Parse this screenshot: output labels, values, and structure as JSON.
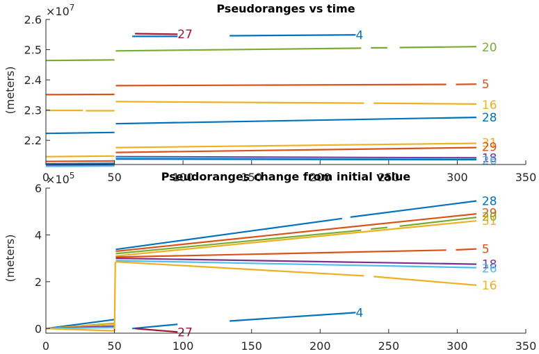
{
  "chart_data": [
    {
      "type": "line",
      "title": "Pseudoranges vs time",
      "ylabel": "(meters)",
      "xlabel": "",
      "xlim": [
        0,
        350
      ],
      "ylim": [
        21200000,
        26000000
      ],
      "y_exponent_label": "×10",
      "y_exponent_power": "7",
      "xticks": [
        "0",
        "50",
        "100",
        "150",
        "200",
        "250",
        "300",
        "350"
      ],
      "xtick_values": [
        0,
        50,
        100,
        150,
        200,
        250,
        300,
        350
      ],
      "yticks": [
        "2.2",
        "2.3",
        "2.4",
        "2.5",
        "2.6"
      ],
      "ytick_values": [
        22000000,
        23000000,
        24000000,
        25000000,
        26000000
      ],
      "series": [
        {
          "name": "27",
          "color": "#A2142F",
          "label_x": 96,
          "label_y": 25520000,
          "segments": [
            [
              [
                65,
                25530000
              ],
              [
                96,
                25510000
              ]
            ]
          ]
        },
        {
          "name": "4",
          "color": "#0072BD",
          "label_x": 226,
          "label_y": 25480000,
          "segments": [
            [
              [
                63,
                25440000
              ],
              [
                96,
                25440000
              ]
            ],
            [
              [
                134,
                25460000
              ],
              [
                226,
                25490000
              ]
            ]
          ]
        },
        {
          "name": "20",
          "color": "#77AC30",
          "label_x": 318,
          "label_y": 25080000,
          "segments": [
            [
              [
                0,
                24640000
              ],
              [
                50,
                24660000
              ]
            ],
            [
              [
                51,
                24960000
              ],
              [
                230,
                25050000
              ]
            ],
            [
              [
                237,
                25060000
              ],
              [
                249,
                25060000
              ]
            ],
            [
              [
                258,
                25070000
              ],
              [
                314,
                25100000
              ]
            ]
          ]
        },
        {
          "name": "5",
          "color": "#D95319",
          "label_x": 318,
          "label_y": 23860000,
          "segments": [
            [
              [
                0,
                23510000
              ],
              [
                50,
                23520000
              ]
            ],
            [
              [
                51,
                23810000
              ],
              [
                292,
                23850000
              ]
            ],
            [
              [
                299,
                23850000
              ],
              [
                314,
                23860000
              ]
            ]
          ]
        },
        {
          "name": "16",
          "color": "#EDB120",
          "label_x": 318,
          "label_y": 23180000,
          "segments": [
            [
              [
                0,
                22990000
              ],
              [
                27,
                22990000
              ]
            ],
            [
              [
                29,
                22980000
              ],
              [
                50,
                22980000
              ]
            ],
            [
              [
                51,
                23280000
              ],
              [
                232,
                23230000
              ]
            ],
            [
              [
                239,
                23230000
              ],
              [
                314,
                23200000
              ]
            ]
          ]
        },
        {
          "name": "28",
          "color": "#0072BD",
          "label_x": 318,
          "label_y": 22760000,
          "segments": [
            [
              [
                0,
                22230000
              ],
              [
                50,
                22260000
              ]
            ],
            [
              [
                51,
                22550000
              ],
              [
                314,
                22760000
              ]
            ]
          ]
        },
        {
          "name": "31",
          "color": "#EDB120",
          "label_x": 318,
          "label_y": 21920000,
          "segments": [
            [
              [
                0,
                21460000
              ],
              [
                50,
                21480000
              ]
            ],
            [
              [
                51,
                21760000
              ],
              [
                314,
                21900000
              ]
            ]
          ]
        },
        {
          "name": "29",
          "color": "#D95319",
          "label_x": 318,
          "label_y": 21780000,
          "segments": [
            [
              [
                0,
                21300000
              ],
              [
                50,
                21320000
              ]
            ],
            [
              [
                51,
                21600000
              ],
              [
                314,
                21760000
              ]
            ]
          ]
        },
        {
          "name": "18",
          "color": "#7E2F8E",
          "label_x": 318,
          "label_y": 21420000,
          "segments": [
            [
              [
                0,
                21160000
              ],
              [
                50,
                21180000
              ]
            ],
            [
              [
                51,
                21460000
              ],
              [
                314,
                21420000
              ]
            ]
          ]
        },
        {
          "name": "26",
          "color": "#4DBEEE",
          "label_x": 318,
          "label_y": 21340000,
          "segments": [
            [
              [
                0,
                21140000
              ],
              [
                50,
                21150000
              ]
            ],
            [
              [
                51,
                21430000
              ],
              [
                314,
                21380000
              ]
            ]
          ]
        },
        {
          "name": "",
          "color": "#0072BD",
          "segments": [
            [
              [
                0,
                21220000
              ],
              [
                50,
                21240000
              ]
            ],
            [
              [
                51,
                21380000
              ],
              [
                314,
                21360000
              ]
            ]
          ]
        }
      ]
    },
    {
      "type": "line",
      "title": "Pseudoranges change from initial value",
      "ylabel": "(meters)",
      "xlabel": "",
      "xlim": [
        0,
        350
      ],
      "ylim": [
        -20000,
        600000
      ],
      "y_exponent_label": "×10",
      "y_exponent_power": "5",
      "xticks": [
        "0",
        "50",
        "100",
        "150",
        "200",
        "250",
        "300",
        "350"
      ],
      "xtick_values": [
        0,
        50,
        100,
        150,
        200,
        250,
        300,
        350
      ],
      "yticks": [
        "0",
        "2",
        "4",
        "6"
      ],
      "ytick_values": [
        0,
        200000,
        400000,
        600000
      ],
      "series": [
        {
          "name": "28",
          "color": "#0072BD",
          "label_x": 318,
          "label_y": 545000,
          "segments": [
            [
              [
                0,
                0
              ],
              [
                50,
                38000
              ]
            ],
            [
              [
                51,
                338000
              ],
              [
                216,
                470000
              ]
            ],
            [
              [
                222,
                476000
              ],
              [
                314,
                545000
              ]
            ]
          ]
        },
        {
          "name": "29",
          "color": "#D95319",
          "label_x": 318,
          "label_y": 495000,
          "segments": [
            [
              [
                0,
                0
              ],
              [
                50,
                20000
              ]
            ],
            [
              [
                51,
                330000
              ],
              [
                314,
                490000
              ]
            ]
          ]
        },
        {
          "name": "20",
          "color": "#77AC30",
          "label_x": 318,
          "label_y": 478000,
          "segments": [
            [
              [
                0,
                0
              ],
              [
                50,
                22000
              ]
            ],
            [
              [
                51,
                320000
              ],
              [
                230,
                420000
              ]
            ],
            [
              [
                237,
                425000
              ],
              [
                249,
                432000
              ]
            ],
            [
              [
                258,
                437000
              ],
              [
                314,
                475000
              ]
            ]
          ]
        },
        {
          "name": "31",
          "color": "#EDB120",
          "label_x": 318,
          "label_y": 460000,
          "segments": [
            [
              [
                0,
                0
              ],
              [
                50,
                20000
              ]
            ],
            [
              [
                51,
                310000
              ],
              [
                314,
                460000
              ]
            ]
          ]
        },
        {
          "name": "5",
          "color": "#D95319",
          "label_x": 318,
          "label_y": 340000,
          "segments": [
            [
              [
                0,
                0
              ],
              [
                50,
                10000
              ]
            ],
            [
              [
                51,
                305000
              ],
              [
                292,
                335000
              ]
            ],
            [
              [
                299,
                336000
              ],
              [
                314,
                340000
              ]
            ]
          ]
        },
        {
          "name": "18",
          "color": "#7E2F8E",
          "label_x": 318,
          "label_y": 275000,
          "segments": [
            [
              [
                0,
                0
              ],
              [
                50,
                10000
              ]
            ],
            [
              [
                51,
                300000
              ],
              [
                314,
                275000
              ]
            ]
          ]
        },
        {
          "name": "26",
          "color": "#4DBEEE",
          "label_x": 318,
          "label_y": 258000,
          "segments": [
            [
              [
                0,
                0
              ],
              [
                50,
                5000
              ]
            ],
            [
              [
                51,
                290000
              ],
              [
                314,
                260000
              ]
            ]
          ]
        },
        {
          "name": "16",
          "color": "#EDB120",
          "label_x": 318,
          "label_y": 185000,
          "segments": [
            [
              [
                0,
                0
              ],
              [
                50,
                -10000
              ]
            ],
            [
              [
                50,
                -10000
              ],
              [
                50.6,
                285000
              ]
            ],
            [
              [
                51,
                285000
              ],
              [
                232,
                225000
              ]
            ],
            [
              [
                239,
                222000
              ],
              [
                314,
                185000
              ]
            ]
          ]
        },
        {
          "name": "4",
          "color": "#0072BD",
          "label_x": 226,
          "label_y": 68000,
          "segments": [
            [
              [
                63,
                0
              ],
              [
                96,
                18000
              ]
            ],
            [
              [
                134,
                32000
              ],
              [
                226,
                68000
              ]
            ]
          ]
        },
        {
          "name": "27",
          "color": "#A2142F",
          "label_x": 96,
          "label_y": -15000,
          "segments": [
            [
              [
                65,
                0
              ],
              [
                96,
                -15000
              ]
            ]
          ]
        }
      ]
    }
  ]
}
